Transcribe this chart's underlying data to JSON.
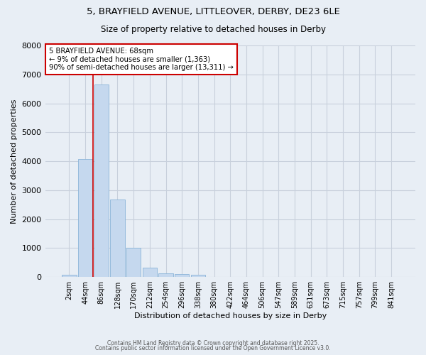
{
  "title": "5, BRAYFIELD AVENUE, LITTLEOVER, DERBY, DE23 6LE",
  "subtitle": "Size of property relative to detached houses in Derby",
  "xlabel": "Distribution of detached houses by size in Derby",
  "ylabel": "Number of detached properties",
  "categories": [
    "2sqm",
    "44sqm",
    "86sqm",
    "128sqm",
    "170sqm",
    "212sqm",
    "254sqm",
    "296sqm",
    "338sqm",
    "380sqm",
    "422sqm",
    "464sqm",
    "506sqm",
    "547sqm",
    "589sqm",
    "631sqm",
    "673sqm",
    "715sqm",
    "757sqm",
    "799sqm",
    "841sqm"
  ],
  "values": [
    70,
    4080,
    6650,
    2680,
    1010,
    330,
    130,
    100,
    80,
    0,
    0,
    0,
    0,
    0,
    0,
    0,
    0,
    0,
    0,
    0,
    0
  ],
  "bar_color": "#c5d8ee",
  "bar_edge_color": "#8ab4d8",
  "vline_color": "#cc0000",
  "annotation_text": "5 BRAYFIELD AVENUE: 68sqm\n← 9% of detached houses are smaller (1,363)\n90% of semi-detached houses are larger (13,311) →",
  "annotation_box_color": "#ffffff",
  "annotation_box_edge_color": "#cc0000",
  "ylim": [
    0,
    8000
  ],
  "yticks": [
    0,
    1000,
    2000,
    3000,
    4000,
    5000,
    6000,
    7000,
    8000
  ],
  "grid_color": "#c8d0dc",
  "bg_color": "#e8eef5",
  "footer_line1": "Contains HM Land Registry data © Crown copyright and database right 2025.",
  "footer_line2": "Contains public sector information licensed under the Open Government Licence v3.0."
}
